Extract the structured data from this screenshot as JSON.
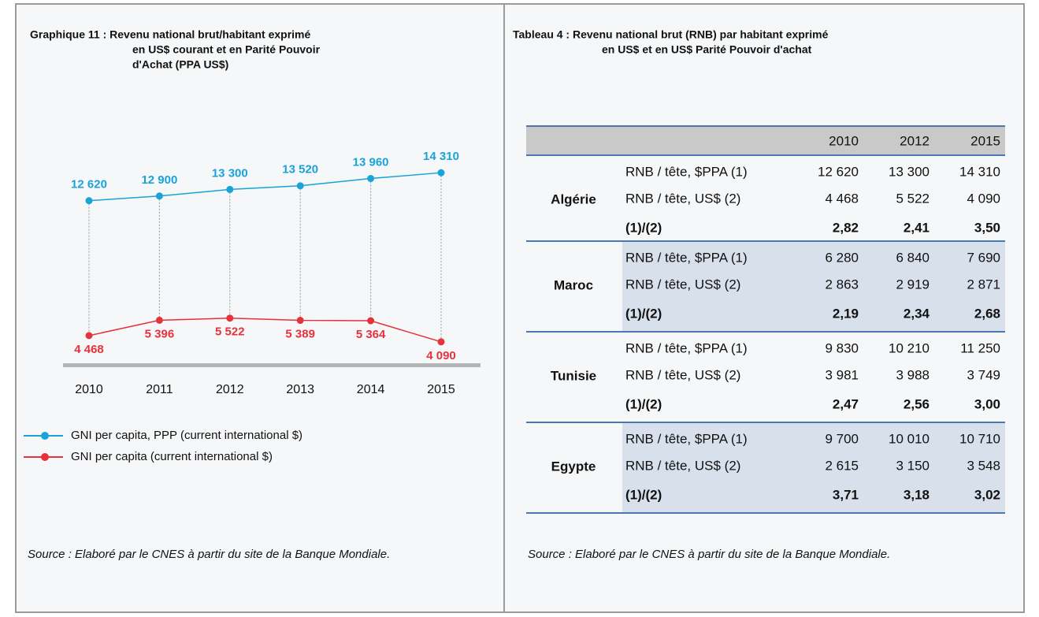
{
  "chart_data": {
    "type": "line",
    "title": [
      "Graphique 11 : Revenu national brut/habitant exprimé",
      "en US$ courant et en Parité Pouvoir",
      "d'Achat (PPA US$)"
    ],
    "categories": [
      "2010",
      "2011",
      "2012",
      "2013",
      "2014",
      "2015"
    ],
    "series": [
      {
        "name": "GNI per capita, PPP (current international $)",
        "color": "#1aa3d9",
        "values": [
          12620,
          12900,
          13300,
          13520,
          13960,
          14310
        ],
        "value_labels": [
          "12 620",
          "12 900",
          "13 300",
          "13 520",
          "13 960",
          "14 310"
        ]
      },
      {
        "name": "GNI per capita (current international $)",
        "color": "#e5323d",
        "values": [
          4468,
          5396,
          5522,
          5389,
          5364,
          4090
        ],
        "value_labels": [
          "4 468",
          "5 396",
          "5 522",
          "5 389",
          "5 364",
          "4 090"
        ]
      }
    ],
    "ylim": [
      2700,
      15700
    ],
    "source": "Source : Elaboré par le CNES à partir du site de la Banque Mondiale."
  },
  "table": {
    "title": [
      "Tableau 4 : Revenu national brut (RNB) par habitant exprimé",
      "en US$ et en US$ Parité Pouvoir d'achat"
    ],
    "header": [
      "2010",
      "2012",
      "2015"
    ],
    "groups": [
      {
        "country": "Algérie",
        "rows": [
          [
            "RNB / tête, $PPA (1)",
            "12 620",
            "13 300",
            "14 310"
          ],
          [
            "RNB / tête, US$ (2)",
            "4 468",
            "5 522",
            "4 090"
          ],
          [
            "(1)/(2)",
            "2,82",
            "2,41",
            "3,50"
          ]
        ]
      },
      {
        "country": "Maroc",
        "rows": [
          [
            "RNB / tête, $PPA (1)",
            "6 280",
            "6 840",
            "7 690"
          ],
          [
            "RNB / tête, US$ (2)",
            "2 863",
            "2 919",
            "2 871"
          ],
          [
            "(1)/(2)",
            "2,19",
            "2,34",
            "2,68"
          ]
        ]
      },
      {
        "country": "Tunisie",
        "rows": [
          [
            "RNB / tête, $PPA (1)",
            "9 830",
            "10 210",
            "11 250"
          ],
          [
            "RNB / tête, US$ (2)",
            "3 981",
            "3 988",
            "3 749"
          ],
          [
            "(1)/(2)",
            "2,47",
            "2,56",
            "3,00"
          ]
        ]
      },
      {
        "country": "Egypte",
        "rows": [
          [
            "RNB / tête, $PPA (1)",
            "9 700",
            "10 010",
            "10 710"
          ],
          [
            "RNB / tête, US$ (2)",
            "2 615",
            "3 150",
            "3 548"
          ],
          [
            "(1)/(2)",
            "3,71",
            "3,18",
            "3,02"
          ]
        ]
      }
    ],
    "source": "Source : Elaboré par le CNES à partir du site de la Banque Mondiale."
  }
}
